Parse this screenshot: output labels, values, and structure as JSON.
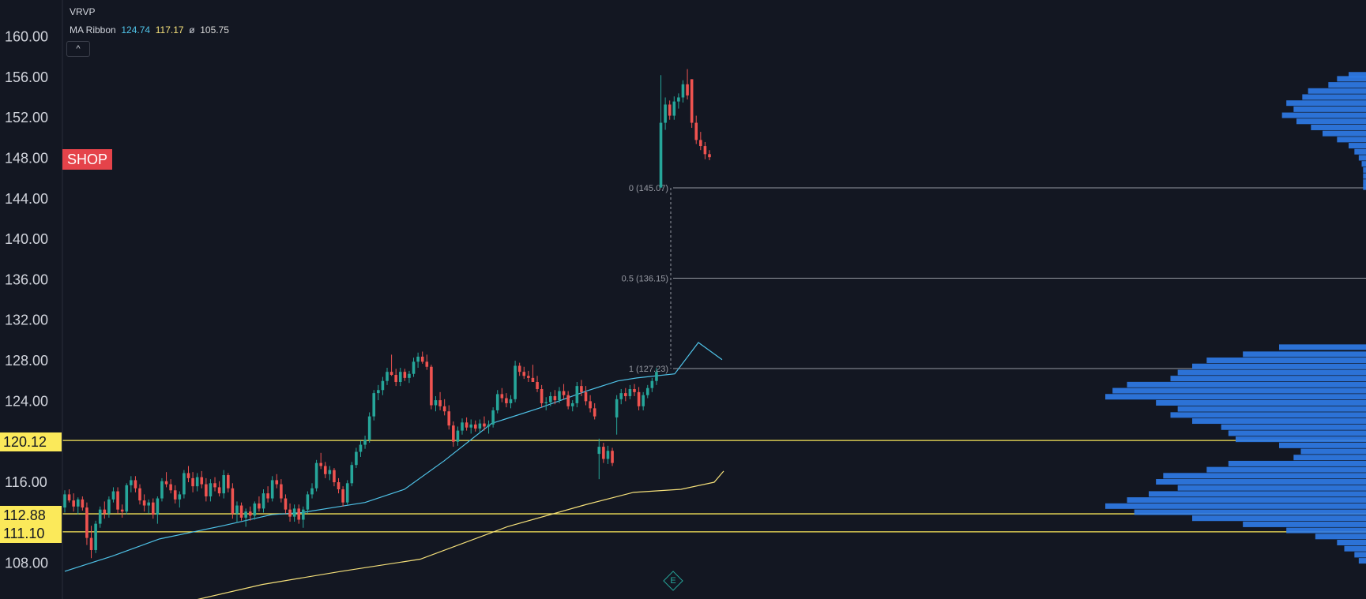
{
  "legend": {
    "vrvp_label": "VRVP",
    "ma_label": "MA Ribbon",
    "ma_value_1": "124.74",
    "ma_value_2": "117.17",
    "ma_value_3_symbol": "ø",
    "ma_value_3": "105.75",
    "collapse_glyph": "^"
  },
  "ticker_badge": "SHOP",
  "earnings_marker": "E",
  "colors": {
    "background": "#131722",
    "up": "#26a69a",
    "down": "#ef5350",
    "ma_fast": "#4fc3e8",
    "ma_slow": "#f5e07a",
    "level_line": "#fbe95a",
    "volume_profile": "#2f7be6",
    "badge": "#e5434a"
  },
  "chart_data": {
    "type": "candlestick",
    "y_axis": {
      "ticks": [
        "160.00",
        "156.00",
        "152.00",
        "148.00",
        "144.00",
        "140.00",
        "136.00",
        "132.00",
        "128.00",
        "124.00",
        "116.00",
        "108.00"
      ],
      "range": [
        104.0,
        163.0
      ]
    },
    "horizontal_levels": [
      {
        "label": "120.12",
        "value": 120.12
      },
      {
        "label": "112.88",
        "value": 112.88
      },
      {
        "label": "111.10",
        "value": 111.1
      }
    ],
    "fib_levels": [
      {
        "label": "0 (145.07)",
        "value": 145.07
      },
      {
        "label": "0.5 (136.15)",
        "value": 136.15
      },
      {
        "label": "1 (127.23)",
        "value": 127.23
      }
    ],
    "candles_ohlc": [
      [
        113.5,
        115.2,
        113.0,
        114.8
      ],
      [
        114.8,
        115.3,
        114.0,
        114.2
      ],
      [
        114.2,
        114.9,
        113.1,
        113.6
      ],
      [
        113.6,
        114.5,
        112.8,
        114.3
      ],
      [
        114.3,
        114.6,
        113.2,
        113.5
      ],
      [
        113.5,
        114.0,
        109.8,
        110.5
      ],
      [
        110.5,
        111.7,
        108.5,
        109.3
      ],
      [
        109.3,
        112.2,
        109.0,
        111.9
      ],
      [
        111.9,
        113.6,
        111.5,
        113.3
      ],
      [
        113.3,
        114.1,
        112.4,
        112.9
      ],
      [
        112.9,
        114.6,
        112.5,
        114.3
      ],
      [
        114.3,
        115.5,
        114.0,
        115.1
      ],
      [
        115.1,
        115.5,
        112.9,
        113.3
      ],
      [
        113.3,
        113.8,
        112.5,
        113.1
      ],
      [
        113.1,
        115.9,
        112.8,
        115.7
      ],
      [
        115.7,
        116.6,
        115.0,
        116.2
      ],
      [
        116.2,
        116.6,
        115.0,
        115.4
      ],
      [
        115.4,
        115.8,
        113.8,
        114.2
      ],
      [
        114.2,
        114.8,
        113.1,
        113.7
      ],
      [
        113.7,
        114.3,
        112.9,
        114.0
      ],
      [
        114.0,
        114.4,
        112.4,
        112.8
      ],
      [
        112.8,
        114.6,
        111.9,
        114.4
      ],
      [
        114.4,
        116.4,
        114.1,
        116.1
      ],
      [
        116.1,
        117.0,
        115.5,
        115.8
      ],
      [
        115.8,
        116.3,
        114.9,
        115.2
      ],
      [
        115.2,
        115.7,
        113.9,
        114.3
      ],
      [
        114.3,
        115.1,
        113.5,
        114.8
      ],
      [
        114.8,
        117.2,
        114.4,
        116.9
      ],
      [
        116.9,
        117.6,
        116.0,
        116.4
      ],
      [
        116.4,
        117.0,
        115.0,
        115.6
      ],
      [
        115.6,
        116.9,
        115.1,
        116.5
      ],
      [
        116.5,
        117.1,
        115.4,
        115.8
      ],
      [
        115.8,
        116.4,
        114.1,
        114.6
      ],
      [
        114.6,
        116.3,
        114.1,
        115.9
      ],
      [
        115.9,
        116.5,
        115.1,
        115.5
      ],
      [
        115.5,
        116.1,
        114.6,
        114.9
      ],
      [
        114.9,
        117.2,
        114.4,
        116.7
      ],
      [
        116.7,
        116.9,
        115.0,
        115.4
      ],
      [
        115.4,
        115.9,
        112.4,
        112.9
      ],
      [
        112.9,
        114.1,
        112.0,
        113.7
      ],
      [
        113.7,
        114.0,
        112.2,
        112.5
      ],
      [
        112.5,
        113.4,
        111.6,
        113.1
      ],
      [
        113.1,
        113.6,
        112.2,
        112.7
      ],
      [
        112.7,
        114.1,
        112.3,
        113.9
      ],
      [
        113.9,
        114.6,
        113.1,
        113.4
      ],
      [
        113.4,
        115.3,
        113.0,
        114.9
      ],
      [
        114.9,
        115.6,
        114.0,
        114.4
      ],
      [
        114.4,
        116.6,
        114.1,
        116.2
      ],
      [
        116.2,
        116.8,
        115.4,
        115.8
      ],
      [
        115.8,
        116.3,
        114.0,
        114.4
      ],
      [
        114.4,
        114.8,
        112.9,
        113.3
      ],
      [
        113.3,
        113.9,
        112.1,
        112.6
      ],
      [
        112.6,
        113.8,
        112.1,
        113.4
      ],
      [
        113.4,
        113.8,
        111.9,
        112.3
      ],
      [
        112.3,
        113.6,
        111.5,
        113.3
      ],
      [
        113.3,
        115.1,
        112.9,
        114.8
      ],
      [
        114.8,
        115.9,
        114.4,
        115.4
      ],
      [
        115.4,
        118.2,
        115.1,
        117.9
      ],
      [
        117.9,
        118.9,
        117.3,
        117.6
      ],
      [
        117.6,
        118.0,
        116.4,
        116.8
      ],
      [
        116.8,
        117.6,
        116.2,
        117.2
      ],
      [
        117.2,
        117.4,
        115.6,
        116.0
      ],
      [
        116.0,
        116.4,
        114.9,
        115.3
      ],
      [
        115.3,
        115.6,
        113.6,
        114.0
      ],
      [
        114.0,
        116.2,
        113.8,
        115.9
      ],
      [
        115.9,
        118.0,
        115.6,
        117.7
      ],
      [
        117.7,
        119.4,
        117.4,
        119.0
      ],
      [
        119.0,
        120.1,
        118.5,
        119.7
      ],
      [
        119.7,
        120.6,
        119.3,
        120.2
      ],
      [
        120.2,
        122.9,
        119.9,
        122.5
      ],
      [
        122.5,
        125.1,
        122.1,
        124.8
      ],
      [
        124.8,
        125.6,
        124.1,
        125.1
      ],
      [
        125.1,
        126.4,
        124.6,
        126.0
      ],
      [
        126.0,
        127.3,
        125.6,
        126.9
      ],
      [
        126.9,
        128.6,
        126.5,
        126.6
      ],
      [
        126.6,
        127.2,
        125.5,
        125.9
      ],
      [
        125.9,
        127.3,
        125.5,
        126.9
      ],
      [
        126.9,
        127.2,
        126.0,
        126.3
      ],
      [
        126.3,
        127.0,
        125.8,
        126.7
      ],
      [
        126.7,
        128.3,
        126.4,
        127.9
      ],
      [
        127.9,
        128.8,
        127.3,
        128.4
      ],
      [
        128.4,
        128.9,
        127.7,
        127.9
      ],
      [
        127.9,
        128.6,
        127.1,
        127.4
      ],
      [
        127.4,
        127.6,
        123.2,
        123.6
      ],
      [
        123.6,
        124.5,
        123.0,
        124.1
      ],
      [
        124.1,
        124.9,
        123.1,
        123.5
      ],
      [
        123.5,
        124.2,
        122.6,
        123.0
      ],
      [
        123.0,
        123.6,
        121.2,
        121.6
      ],
      [
        121.6,
        122.0,
        119.5,
        120.0
      ],
      [
        120.0,
        121.5,
        119.6,
        121.1
      ],
      [
        121.1,
        122.3,
        120.7,
        121.9
      ],
      [
        121.9,
        122.4,
        121.1,
        121.4
      ],
      [
        121.4,
        122.2,
        120.8,
        121.7
      ],
      [
        121.7,
        122.1,
        121.0,
        121.3
      ],
      [
        121.3,
        122.2,
        120.9,
        121.8
      ],
      [
        121.8,
        122.5,
        121.1,
        121.5
      ],
      [
        121.5,
        122.1,
        120.8,
        121.7
      ],
      [
        121.7,
        123.4,
        121.4,
        123.1
      ],
      [
        123.1,
        125.1,
        122.8,
        124.7
      ],
      [
        124.7,
        125.3,
        123.9,
        124.3
      ],
      [
        124.3,
        124.8,
        123.4,
        123.8
      ],
      [
        123.8,
        124.6,
        123.3,
        124.2
      ],
      [
        124.2,
        128.0,
        123.9,
        127.5
      ],
      [
        127.5,
        127.8,
        126.5,
        126.9
      ],
      [
        126.9,
        127.4,
        126.2,
        126.5
      ],
      [
        126.5,
        127.0,
        125.9,
        126.3
      ],
      [
        126.3,
        127.6,
        125.9,
        125.9
      ],
      [
        125.9,
        126.5,
        124.9,
        125.2
      ],
      [
        125.2,
        125.6,
        123.4,
        123.8
      ],
      [
        123.8,
        124.4,
        123.1,
        123.9
      ],
      [
        123.9,
        124.9,
        123.5,
        124.5
      ],
      [
        124.5,
        125.1,
        123.7,
        124.1
      ],
      [
        124.1,
        125.4,
        123.8,
        125.0
      ],
      [
        125.0,
        125.7,
        124.2,
        124.6
      ],
      [
        124.6,
        125.0,
        123.2,
        123.5
      ],
      [
        123.5,
        124.1,
        123.0,
        123.8
      ],
      [
        123.8,
        125.9,
        123.4,
        125.5
      ],
      [
        125.5,
        126.1,
        124.5,
        124.9
      ],
      [
        124.9,
        125.5,
        123.6,
        124.0
      ],
      [
        124.0,
        124.6,
        122.9,
        123.3
      ],
      [
        123.3,
        123.8,
        122.2,
        122.5
      ],
      [
        118.8,
        120.3,
        116.3,
        119.5
      ],
      [
        119.5,
        119.9,
        117.9,
        118.3
      ],
      [
        118.3,
        119.6,
        117.8,
        119.1
      ],
      [
        119.1,
        119.4,
        117.6,
        117.9
      ],
      [
        122.4,
        124.6,
        120.7,
        124.2
      ],
      [
        124.2,
        125.2,
        123.7,
        124.8
      ],
      [
        124.8,
        125.3,
        124.0,
        124.5
      ],
      [
        124.5,
        125.6,
        124.2,
        125.2
      ],
      [
        125.2,
        125.7,
        124.5,
        124.9
      ],
      [
        124.9,
        125.4,
        123.1,
        123.5
      ],
      [
        123.5,
        124.9,
        123.1,
        124.6
      ],
      [
        124.6,
        125.6,
        124.3,
        125.3
      ],
      [
        125.3,
        126.3,
        124.9,
        126.0
      ],
      [
        126.0,
        127.3,
        125.6,
        126.9
      ],
      [
        145.1,
        156.2,
        145.1,
        151.5
      ],
      [
        151.5,
        154.0,
        150.8,
        153.3
      ],
      [
        153.3,
        153.7,
        151.8,
        152.2
      ],
      [
        152.2,
        154.1,
        151.8,
        153.6
      ],
      [
        153.6,
        154.4,
        152.9,
        154.0
      ],
      [
        154.0,
        155.7,
        153.5,
        155.3
      ],
      [
        155.3,
        156.8,
        153.8,
        154.2
      ],
      [
        155.8,
        155.8,
        151.0,
        151.5
      ],
      [
        151.5,
        152.2,
        149.4,
        149.8
      ],
      [
        149.8,
        150.6,
        148.8,
        149.2
      ],
      [
        149.2,
        149.6,
        147.9,
        148.4
      ],
      [
        148.4,
        148.8,
        147.8,
        148.1
      ]
    ],
    "ma_fast": [
      [
        0,
        107.2
      ],
      [
        60,
        108.7
      ],
      [
        120,
        110.4
      ],
      [
        200,
        111.7
      ],
      [
        262,
        112.8
      ],
      [
        300,
        113.0
      ],
      [
        340,
        113.5
      ],
      [
        380,
        114.0
      ],
      [
        430,
        115.3
      ],
      [
        480,
        118.1
      ],
      [
        540,
        121.8
      ],
      [
        600,
        123.3
      ],
      [
        660,
        125.0
      ],
      [
        700,
        126.0
      ],
      [
        724,
        126.3
      ],
      [
        772,
        126.7
      ],
      [
        802,
        129.8
      ],
      [
        832,
        128.1
      ]
    ],
    "ma_slow": [
      [
        150,
        104.1
      ],
      [
        250,
        105.9
      ],
      [
        350,
        107.2
      ],
      [
        450,
        108.4
      ],
      [
        560,
        111.6
      ],
      [
        660,
        113.8
      ],
      [
        720,
        115.0
      ],
      [
        780,
        115.3
      ],
      [
        822,
        116.0
      ],
      [
        834,
        117.1
      ]
    ],
    "volume_profile_top": [
      [
        156.2,
        0.12
      ],
      [
        155.8,
        0.2
      ],
      [
        155.2,
        0.26
      ],
      [
        154.6,
        0.4
      ],
      [
        154.0,
        0.44
      ],
      [
        153.4,
        0.55
      ],
      [
        152.8,
        0.5
      ],
      [
        152.2,
        0.58
      ],
      [
        151.6,
        0.48
      ],
      [
        151.0,
        0.38
      ],
      [
        150.4,
        0.3
      ],
      [
        149.8,
        0.2
      ],
      [
        149.2,
        0.12
      ],
      [
        148.6,
        0.08
      ],
      [
        148.0,
        0.05
      ],
      [
        147.4,
        0.03
      ],
      [
        146.8,
        0.02
      ],
      [
        146.2,
        0.02
      ],
      [
        145.6,
        0.02
      ],
      [
        145.1,
        0.02
      ]
    ],
    "volume_profile_bottom": [
      [
        129.3,
        0.6
      ],
      [
        128.6,
        0.85
      ],
      [
        128.0,
        1.1
      ],
      [
        127.4,
        1.2
      ],
      [
        126.8,
        1.3
      ],
      [
        126.2,
        1.35
      ],
      [
        125.6,
        1.65
      ],
      [
        125.0,
        1.75
      ],
      [
        124.4,
        1.8
      ],
      [
        123.8,
        1.45
      ],
      [
        123.2,
        1.3
      ],
      [
        122.6,
        1.35
      ],
      [
        122.0,
        1.2
      ],
      [
        121.4,
        1.0
      ],
      [
        120.8,
        0.95
      ],
      [
        120.2,
        0.9
      ],
      [
        119.6,
        0.6
      ],
      [
        119.0,
        0.45
      ],
      [
        118.4,
        0.5
      ],
      [
        117.8,
        0.95
      ],
      [
        117.2,
        1.1
      ],
      [
        116.6,
        1.4
      ],
      [
        116.0,
        1.45
      ],
      [
        115.4,
        1.3
      ],
      [
        114.8,
        1.5
      ],
      [
        114.2,
        1.65
      ],
      [
        113.6,
        1.8
      ],
      [
        113.0,
        1.6
      ],
      [
        112.4,
        1.2
      ],
      [
        111.8,
        0.85
      ],
      [
        111.2,
        0.55
      ],
      [
        110.6,
        0.35
      ],
      [
        110.0,
        0.2
      ],
      [
        109.4,
        0.15
      ],
      [
        108.8,
        0.08
      ],
      [
        108.2,
        0.05
      ]
    ]
  }
}
